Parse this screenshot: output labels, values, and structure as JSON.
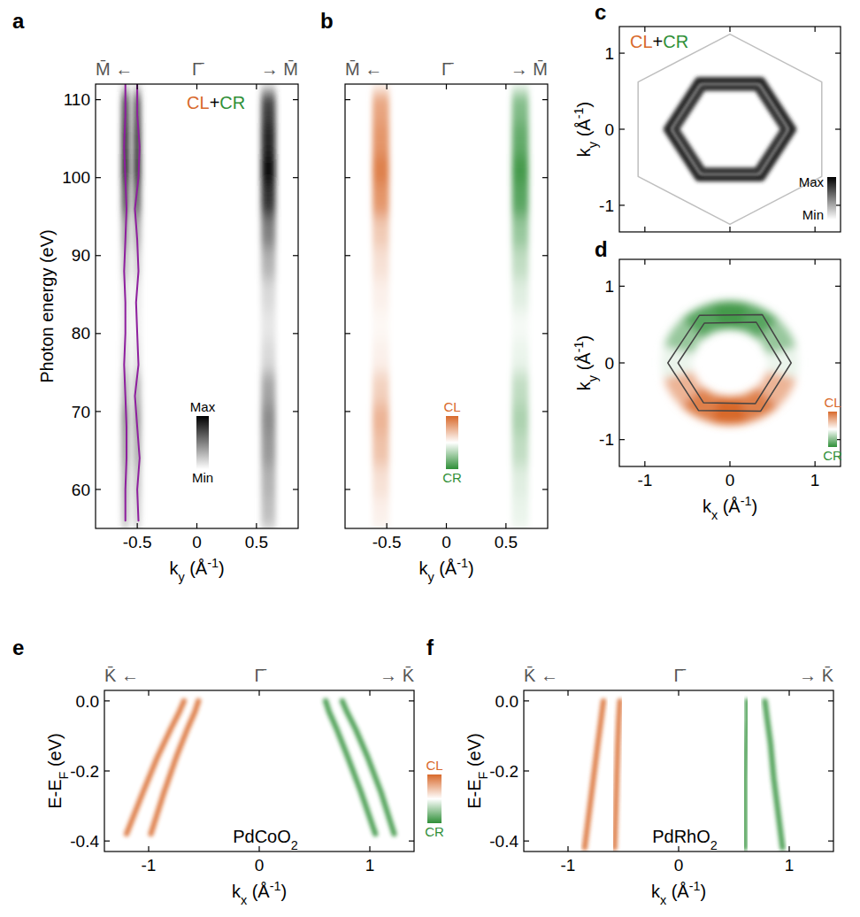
{
  "chart_data": [
    {
      "panel": "a",
      "type": "band_map",
      "x_label": [
        {
          "t": "k"
        },
        {
          "t": "y",
          "sub": true
        },
        {
          "t": " (Å"
        },
        {
          "t": "-1",
          "sup": true
        },
        {
          "t": ")"
        }
      ],
      "y_label": [
        {
          "t": "Photon energy (eV)"
        }
      ],
      "xlim": [
        -0.85,
        0.85
      ],
      "ylim": [
        55,
        112
      ],
      "xticks": [
        -0.5,
        0,
        0.5
      ],
      "yticks": [
        60,
        70,
        80,
        90,
        100,
        110
      ],
      "tick_labels": true,
      "top_labels": {
        "left": "M̄ ←",
        "center": {
          "value": 0,
          "label": "Γ̄"
        },
        "right": "→ M̄"
      },
      "annotation": [
        {
          "t": "CL",
          "color": "#d8692b"
        },
        {
          "t": "+",
          "color": "#000000"
        },
        {
          "t": "CR",
          "color": "#2f8f38"
        }
      ],
      "colorbar": {
        "labels": [
          "Max",
          "Min"
        ],
        "colors": [
          "#000000",
          "#ffffff"
        ],
        "range": [
          1,
          0
        ]
      },
      "y": [
        57,
        61,
        65,
        69,
        73,
        77,
        81,
        85,
        89,
        93,
        97,
        101,
        105,
        109
      ],
      "bands": [
        {
          "k": -0.6,
          "width": 0.06,
          "values": [
            0.25,
            0.3,
            0.4,
            0.45,
            0.3,
            0.15,
            0.1,
            0.12,
            0.25,
            0.4,
            0.7,
            0.9,
            0.85,
            0.75
          ]
        },
        {
          "k": -0.5,
          "width": 0.06,
          "values": [
            0.2,
            0.25,
            0.35,
            0.4,
            0.3,
            0.12,
            0.08,
            0.1,
            0.2,
            0.35,
            0.65,
            0.85,
            0.8,
            0.7
          ]
        },
        {
          "k": 0.6,
          "width": 0.12,
          "values": [
            0.25,
            0.3,
            0.4,
            0.45,
            0.35,
            0.15,
            0.1,
            0.15,
            0.3,
            0.5,
            0.8,
            0.95,
            0.85,
            0.75
          ]
        }
      ],
      "series": [
        {
          "color": "#8e1f9e",
          "x": [
            -0.6,
            -0.6,
            -0.59,
            -0.59,
            -0.6,
            -0.61,
            -0.6,
            -0.6,
            -0.61,
            -0.6,
            -0.59,
            -0.6,
            -0.61,
            -0.6,
            -0.6
          ],
          "y": [
            56,
            60,
            64,
            68,
            72,
            76,
            80,
            84,
            88,
            92,
            96,
            100,
            104,
            108,
            112
          ]
        },
        {
          "color": "#8e1f9e",
          "x": [
            -0.49,
            -0.5,
            -0.48,
            -0.5,
            -0.52,
            -0.49,
            -0.5,
            -0.51,
            -0.49,
            -0.5,
            -0.52,
            -0.49,
            -0.48,
            -0.5,
            -0.5
          ],
          "y": [
            56,
            60,
            64,
            68,
            72,
            76,
            80,
            84,
            88,
            92,
            96,
            100,
            104,
            108,
            112
          ]
        }
      ]
    },
    {
      "panel": "b",
      "type": "band_map",
      "x_label": [
        {
          "t": "k"
        },
        {
          "t": "y",
          "sub": true
        },
        {
          "t": " (Å"
        },
        {
          "t": "-1",
          "sup": true
        },
        {
          "t": ")"
        }
      ],
      "xlim": [
        -0.85,
        0.85
      ],
      "ylim": [
        55,
        112
      ],
      "xticks": [
        -0.5,
        0,
        0.5
      ],
      "yticks": [
        60,
        70,
        80,
        90,
        100,
        110
      ],
      "tick_labels": "x",
      "top_labels": {
        "left": "M̄ ←",
        "center": {
          "value": 0,
          "label": "Γ̄"
        },
        "right": "→ M̄"
      },
      "colorbar": {
        "labels": [
          "CL",
          "CR"
        ],
        "colors": [
          "#d8692b",
          "#ffffff",
          "#2f8f38"
        ],
        "range": [
          1,
          -1
        ]
      },
      "y": [
        57,
        61,
        65,
        69,
        73,
        77,
        81,
        85,
        89,
        93,
        97,
        101,
        105,
        109
      ],
      "bands": [
        {
          "k": -0.55,
          "width": 0.14,
          "values": [
            0.1,
            0.2,
            0.4,
            0.5,
            0.3,
            0.1,
            0.05,
            0.1,
            0.2,
            0.35,
            0.7,
            0.85,
            0.7,
            0.6
          ]
        },
        {
          "k": 0.62,
          "width": 0.14,
          "values": [
            -0.1,
            -0.15,
            -0.3,
            -0.4,
            -0.3,
            -0.1,
            -0.05,
            -0.15,
            -0.3,
            -0.5,
            -0.8,
            -0.9,
            -0.75,
            -0.6
          ]
        }
      ]
    },
    {
      "panel": "c",
      "type": "kmap",
      "y_label": [
        {
          "t": "k"
        },
        {
          "t": "y",
          "sub": true
        },
        {
          "t": " (Å"
        },
        {
          "t": "-1",
          "sup": true
        },
        {
          "t": ")"
        }
      ],
      "xlim": [
        -1.3,
        1.3
      ],
      "ylim": [
        -1.35,
        1.35
      ],
      "xticks": [
        -1,
        0,
        1
      ],
      "yticks": [
        -1,
        0,
        1
      ],
      "tick_labels": "y",
      "annotation": [
        {
          "t": "CL",
          "color": "#d8692b"
        },
        {
          "t": "+",
          "color": "#000000"
        },
        {
          "t": "CR",
          "color": "#2f8f38"
        }
      ],
      "colorbar": {
        "labels": [
          "Max",
          "Min"
        ],
        "colors": [
          "#000000",
          "#ffffff"
        ],
        "range": [
          1,
          0
        ]
      },
      "contours": [
        {
          "value": 0.25,
          "line_style": "thin",
          "x": [
            0,
            1.08,
            1.08,
            0,
            -1.08,
            -1.08
          ],
          "y": [
            1.25,
            0.62,
            -0.62,
            -1.25,
            -0.62,
            0.62
          ]
        },
        {
          "value": 0.85,
          "line_style": "broad",
          "x": [
            0.74,
            0.37,
            -0.37,
            -0.74,
            -0.37,
            0.37
          ],
          "y": [
            0,
            0.64,
            0.64,
            0,
            -0.64,
            -0.64
          ]
        },
        {
          "value": 0.8,
          "line_style": "broad",
          "x": [
            0.64,
            0.32,
            -0.32,
            -0.64,
            -0.32,
            0.32
          ],
          "y": [
            0,
            0.55,
            0.55,
            0,
            -0.55,
            -0.55
          ]
        }
      ]
    },
    {
      "panel": "d",
      "type": "kmap",
      "x_label": [
        {
          "t": "k"
        },
        {
          "t": "x",
          "sub": true
        },
        {
          "t": " (Å"
        },
        {
          "t": "-1",
          "sup": true
        },
        {
          "t": ")"
        }
      ],
      "y_label": [
        {
          "t": "k"
        },
        {
          "t": "y",
          "sub": true
        },
        {
          "t": " (Å"
        },
        {
          "t": "-1",
          "sup": true
        },
        {
          "t": ")"
        }
      ],
      "xlim": [
        -1.3,
        1.3
      ],
      "ylim": [
        -1.35,
        1.35
      ],
      "xticks": [
        -1,
        0,
        1
      ],
      "yticks": [
        -1,
        0,
        1
      ],
      "tick_labels": true,
      "colorbar": {
        "labels": [
          "CL",
          "CR"
        ],
        "colors": [
          "#d8692b",
          "#ffffff",
          "#2f8f38"
        ],
        "range": [
          1,
          -1
        ]
      },
      "dichroism": {
        "r": [
          0.45,
          0.8
        ],
        "angles": [
          0,
          30,
          60,
          90,
          120,
          150,
          180,
          210,
          240,
          270,
          300,
          330
        ],
        "values": [
          -0.1,
          -0.5,
          -0.8,
          -0.9,
          -0.8,
          -0.5,
          -0.1,
          0.5,
          0.85,
          1.0,
          0.85,
          0.5
        ]
      },
      "contours": [
        {
          "color": "#444444",
          "line_style": "thin",
          "x": [
            0.72,
            0.38,
            -0.36,
            -0.73,
            -0.37,
            0.36
          ],
          "y": [
            0,
            0.63,
            0.62,
            0,
            -0.62,
            -0.63
          ]
        },
        {
          "color": "#444444",
          "line_style": "thin",
          "x": [
            0.6,
            0.31,
            -0.3,
            -0.61,
            -0.31,
            0.3
          ],
          "y": [
            0,
            0.53,
            0.52,
            0,
            -0.52,
            -0.53
          ]
        }
      ]
    },
    {
      "panel": "e",
      "type": "dispersion",
      "x_label": [
        {
          "t": "k"
        },
        {
          "t": "x",
          "sub": true
        },
        {
          "t": " (Å"
        },
        {
          "t": "-1",
          "sup": true
        },
        {
          "t": ")"
        }
      ],
      "y_label": [
        {
          "t": "E-E"
        },
        {
          "t": "F",
          "sub": true
        },
        {
          "t": " (eV)"
        }
      ],
      "xlim": [
        -1.4,
        1.4
      ],
      "ylim": [
        -0.43,
        0.03
      ],
      "xticks": [
        -1,
        0,
        1
      ],
      "yticks": [
        {
          "value": 0,
          "label": "0.0"
        },
        -0.2,
        -0.4
      ],
      "tick_labels": true,
      "top_labels": {
        "left": "K̄ ←",
        "center": {
          "value": 0,
          "label": "Γ̄"
        },
        "right": "→ K̄"
      },
      "sample": [
        {
          "t": "PdCoO"
        },
        {
          "t": "2",
          "sub": true
        }
      ],
      "colorbar": {
        "labels": [
          "CL",
          "CR"
        ],
        "colors": [
          "#d8692b",
          "#ffffff",
          "#2f8f38"
        ],
        "range": [
          1,
          -1
        ]
      },
      "series": [
        {
          "color": "#d8692b",
          "x": [
            -0.68,
            -0.72,
            -0.8,
            -0.92,
            -1.05,
            -1.2
          ],
          "y": [
            0,
            -0.03,
            -0.08,
            -0.16,
            -0.26,
            -0.38
          ]
        },
        {
          "color": "#d8692b",
          "x": [
            -0.55,
            -0.58,
            -0.65,
            -0.75,
            -0.86,
            -0.98
          ],
          "y": [
            0,
            -0.03,
            -0.08,
            -0.16,
            -0.26,
            -0.38
          ]
        },
        {
          "color": "#2f8f38",
          "x": [
            0.6,
            0.63,
            0.7,
            0.8,
            0.92,
            1.05
          ],
          "y": [
            0,
            -0.03,
            -0.08,
            -0.16,
            -0.26,
            -0.38
          ]
        },
        {
          "color": "#2f8f38",
          "x": [
            0.75,
            0.79,
            0.87,
            0.98,
            1.1,
            1.22
          ],
          "y": [
            0,
            -0.03,
            -0.08,
            -0.16,
            -0.26,
            -0.38
          ]
        }
      ]
    },
    {
      "panel": "f",
      "type": "dispersion",
      "x_label": [
        {
          "t": "k"
        },
        {
          "t": "x",
          "sub": true
        },
        {
          "t": " (Å"
        },
        {
          "t": "-1",
          "sup": true
        },
        {
          "t": ")"
        }
      ],
      "y_label": [
        {
          "t": "E-E"
        },
        {
          "t": "F",
          "sub": true
        },
        {
          "t": " (eV)"
        }
      ],
      "xlim": [
        -1.4,
        1.4
      ],
      "ylim": [
        -0.43,
        0.03
      ],
      "xticks": [
        -1,
        0,
        1
      ],
      "yticks": [
        {
          "value": 0,
          "label": "0.0"
        },
        -0.2,
        -0.4
      ],
      "tick_labels": true,
      "top_labels": {
        "left": "K̄ ←",
        "center": {
          "value": 0,
          "label": "Γ̄"
        },
        "right": "→ K̄"
      },
      "sample": [
        {
          "t": "PdRhO"
        },
        {
          "t": "2",
          "sub": true
        }
      ],
      "series": [
        {
          "color": "#d8692b",
          "x": [
            -0.68,
            -0.7,
            -0.73,
            -0.77,
            -0.81,
            -0.85
          ],
          "y": [
            0,
            -0.05,
            -0.12,
            -0.22,
            -0.32,
            -0.42
          ]
        },
        {
          "color": "#d8692b",
          "x": [
            -0.53,
            -0.54,
            -0.55,
            -0.56,
            -0.57,
            -0.58
          ],
          "y": [
            0,
            -0.05,
            -0.12,
            -0.22,
            -0.32,
            -0.42
          ]
        },
        {
          "color": "#2f8f38",
          "x": [
            0.62,
            0.62,
            0.61,
            0.6,
            0.6,
            0.6
          ],
          "y": [
            0,
            -0.05,
            -0.12,
            -0.22,
            -0.32,
            -0.42
          ]
        },
        {
          "color": "#2f8f38",
          "x": [
            0.78,
            0.8,
            0.83,
            0.86,
            0.9,
            0.94
          ],
          "y": [
            0,
            -0.05,
            -0.12,
            -0.22,
            -0.32,
            -0.42
          ]
        }
      ]
    }
  ]
}
